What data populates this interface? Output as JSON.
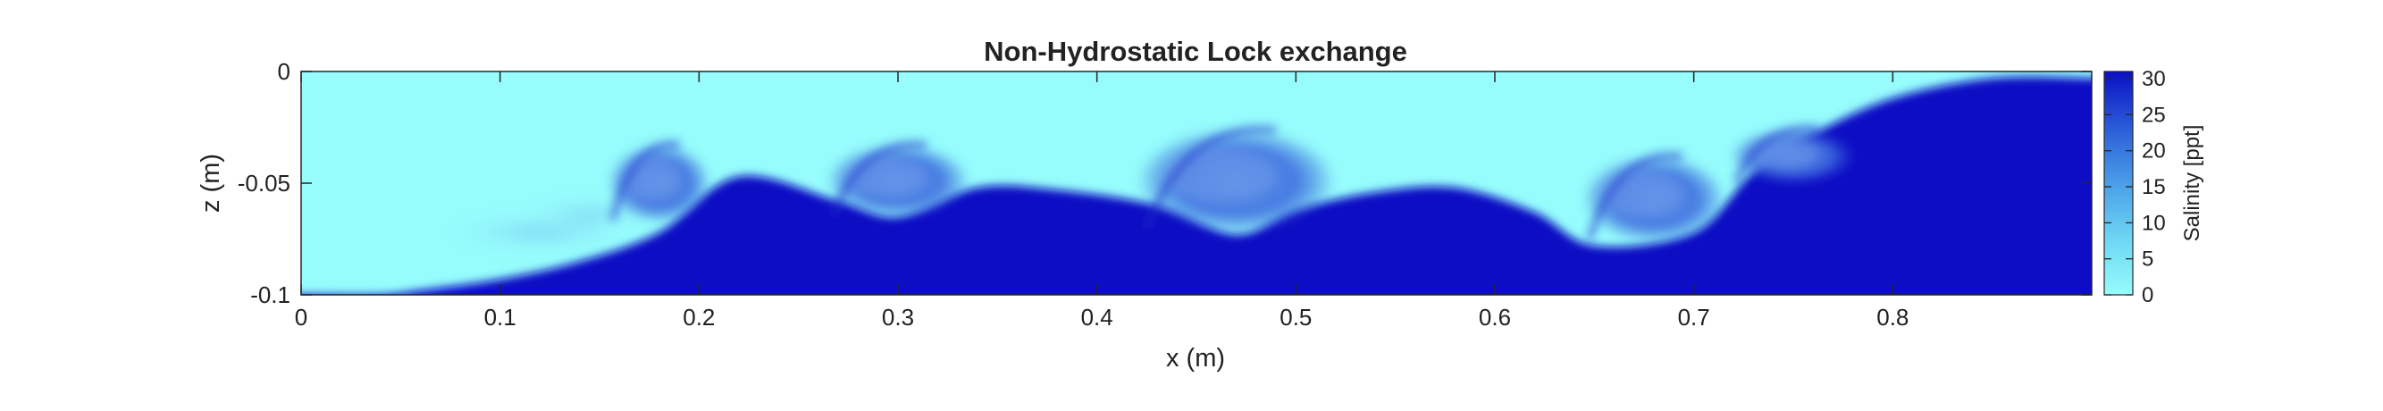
{
  "chart_data": {
    "type": "heatmap",
    "title": "Non-Hydrostatic Lock exchange",
    "xlabel": "x (m)",
    "ylabel": "z (m)",
    "xlim": [
      0,
      0.9
    ],
    "ylim": [
      -0.1,
      0
    ],
    "x_ticks": [
      0,
      0.1,
      0.2,
      0.3,
      0.4,
      0.5,
      0.6,
      0.7,
      0.8
    ],
    "x_tick_labels": [
      "0",
      "0.1",
      "0.2",
      "0.3",
      "0.4",
      "0.5",
      "0.6",
      "0.7",
      "0.8"
    ],
    "y_ticks": [
      0,
      -0.05,
      -0.1
    ],
    "y_tick_labels": [
      "0",
      "-0.05",
      "-0.1"
    ],
    "colorbar": {
      "label": "Salinity [ppt]",
      "range": [
        0,
        31
      ],
      "ticks": [
        0,
        5,
        10,
        15,
        20,
        25,
        30
      ],
      "tick_labels": [
        "0",
        "5",
        "10",
        "15",
        "20",
        "25",
        "30"
      ],
      "low_color": "#96FCFC",
      "high_color": "#0A10C4"
    },
    "colors": {
      "fresh": "#96FCFC",
      "salty": "#0A10C4",
      "mixed": "#3A7DE4"
    },
    "interface": {
      "x": [
        0,
        0.04,
        0.06,
        0.1,
        0.14,
        0.18,
        0.22,
        0.27,
        0.3,
        0.34,
        0.38,
        0.43,
        0.47,
        0.5,
        0.54,
        0.58,
        0.62,
        0.65,
        0.7,
        0.73,
        0.76,
        0.8,
        0.85,
        0.9
      ],
      "z": [
        -0.1,
        -0.1,
        -0.098,
        -0.093,
        -0.085,
        -0.072,
        -0.047,
        -0.058,
        -0.065,
        -0.052,
        -0.053,
        -0.06,
        -0.073,
        -0.062,
        -0.054,
        -0.052,
        -0.063,
        -0.078,
        -0.072,
        -0.045,
        -0.028,
        -0.012,
        -0.003,
        -0.003
      ]
    },
    "billows": [
      {
        "x": 0.18,
        "z": -0.05,
        "rx": 0.026,
        "rz": 0.018
      },
      {
        "x": 0.3,
        "z": -0.049,
        "rx": 0.036,
        "rz": 0.017
      },
      {
        "x": 0.47,
        "z": -0.049,
        "rx": 0.05,
        "rz": 0.024
      },
      {
        "x": 0.68,
        "z": -0.057,
        "rx": 0.036,
        "rz": 0.02
      },
      {
        "x": 0.75,
        "z": -0.038,
        "rx": 0.032,
        "rz": 0.013
      }
    ],
    "wisps": [
      {
        "x": 0.12,
        "z": -0.072,
        "rx": 0.045,
        "rz": 0.006
      },
      {
        "x": 0.145,
        "z": -0.064,
        "rx": 0.03,
        "rz": 0.005
      }
    ]
  }
}
